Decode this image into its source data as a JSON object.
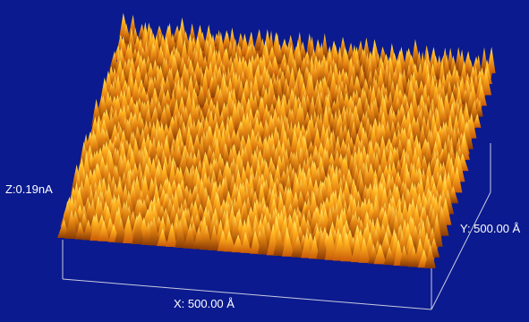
{
  "labels": {
    "z": "Z:0.19nA",
    "x": "X: 500.00 Å",
    "y": "Y: 500.00 Å"
  }
}
